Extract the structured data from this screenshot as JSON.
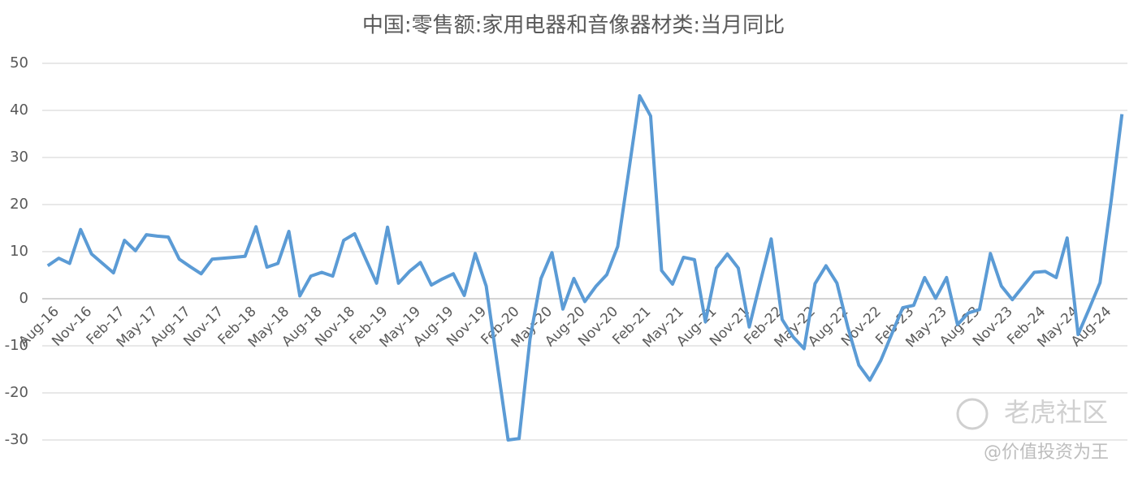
{
  "chart_data": {
    "type": "line",
    "title": "中国:零售额:家用电器和音像器材类:当月同比",
    "categories": [
      "Aug-16",
      null,
      null,
      "Nov-16",
      null,
      null,
      "Feb-17",
      null,
      null,
      "May-17",
      null,
      null,
      "Aug-17",
      null,
      null,
      "Nov-17",
      null,
      null,
      "Feb-18",
      null,
      null,
      "May-18",
      null,
      null,
      "Aug-18",
      null,
      null,
      "Nov-18",
      null,
      null,
      "Feb-19",
      null,
      null,
      "May-19",
      null,
      null,
      "Aug-19",
      null,
      null,
      "Nov-19",
      null,
      null,
      "Feb-20",
      null,
      null,
      "May-20",
      null,
      null,
      "Aug-20",
      null,
      null,
      "Nov-20",
      null,
      null,
      "Feb-21",
      null,
      null,
      "May-21",
      null,
      null,
      "Aug-21",
      null,
      null,
      "Nov-21",
      null,
      null,
      "Feb-22",
      null,
      null,
      "May-22",
      null,
      null,
      "Aug-22",
      null,
      null,
      "Nov-22",
      null,
      null,
      "Feb-23",
      null,
      null,
      "May-23",
      null,
      null,
      "Aug-23",
      null,
      null,
      "Nov-23",
      null,
      null,
      "Feb-24",
      null,
      null,
      "May-24",
      null,
      null,
      "Aug-24",
      null,
      null
    ],
    "series": [
      {
        "name": "当月同比",
        "color": "#5b9bd5",
        "values": [
          7.0,
          8.6,
          7.5,
          14.7,
          9.5,
          7.5,
          5.5,
          12.4,
          10.2,
          13.6,
          13.3,
          13.1,
          8.4,
          6.8,
          5.3,
          8.4,
          8.6,
          8.8,
          9.0,
          15.3,
          6.7,
          7.5,
          14.3,
          0.6,
          4.8,
          5.6,
          4.8,
          12.4,
          13.8,
          8.5,
          3.3,
          15.2,
          3.3,
          5.8,
          7.7,
          2.9,
          4.2,
          5.3,
          0.7,
          9.6,
          2.7,
          -13.7,
          -30.0,
          -29.7,
          -8.5,
          4.3,
          9.8,
          -2.2,
          4.3,
          -0.6,
          2.6,
          5.1,
          11.1,
          27.0,
          43.1,
          38.8,
          6.0,
          3.1,
          8.8,
          8.3,
          -4.9,
          6.5,
          9.5,
          6.5,
          -6.0,
          3.5,
          12.7,
          -4.4,
          -8.1,
          -10.6,
          3.2,
          7.0,
          3.3,
          -6.1,
          -14.1,
          -17.3,
          -13.1,
          -7.5,
          -1.9,
          -1.4,
          4.5,
          0.1,
          4.5,
          -5.5,
          -3.0,
          -2.3,
          9.6,
          2.7,
          -0.2,
          2.7,
          5.6,
          5.8,
          4.5,
          12.9,
          -7.6,
          -2.2,
          3.4,
          20.5,
          39.2
        ]
      }
    ],
    "ylim": [
      -35,
      50
    ],
    "yticks": [
      -30,
      -20,
      -10,
      0,
      10,
      20,
      30,
      40,
      50
    ],
    "grid": true
  },
  "watermark": {
    "brand": "老虎社区",
    "author": "@价值投资为王"
  }
}
